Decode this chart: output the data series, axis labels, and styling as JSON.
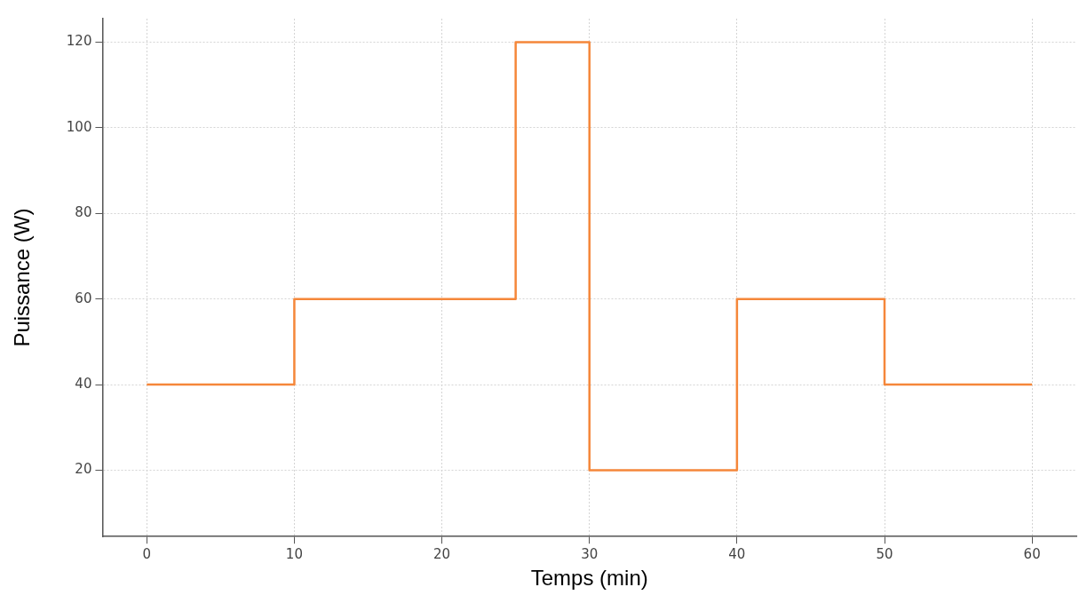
{
  "chart_data": {
    "type": "step",
    "xlabel": "Temps (min)",
    "ylabel": "Puissance (W)",
    "x": [
      0,
      10,
      25,
      30,
      40,
      50,
      60
    ],
    "series": [
      {
        "color": "#f5873a",
        "values": [
          40,
          60,
          120,
          20,
          60,
          40,
          40
        ]
      }
    ],
    "xlim": [
      -3,
      63
    ],
    "xticks": [
      0,
      10,
      20,
      30,
      40,
      50,
      60
    ],
    "ylim": [
      4.5,
      125.5
    ],
    "yticks": [
      20,
      40,
      60,
      80,
      100,
      120
    ],
    "grid": true,
    "legend": false,
    "marker": "none",
    "line_style": "solid"
  }
}
